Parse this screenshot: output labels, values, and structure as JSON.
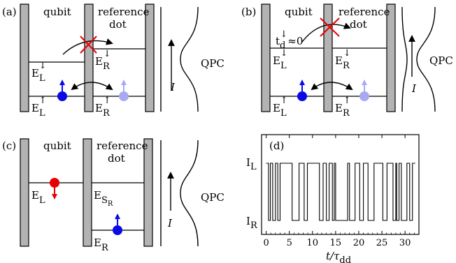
{
  "colors": {
    "electron": "#0a0ae6",
    "electron_faded": "#a9a9f0",
    "electron_red": "#e60000",
    "cross": "#e60000",
    "barrier": "#b3b3b3"
  },
  "panel_a": {
    "tag": "(a)",
    "left_label": "qubit",
    "right_label_1": "reference",
    "right_label_2": "dot",
    "E_L_down": "E",
    "E_L_down_sub": "L",
    "E_L_down_sup": "↓",
    "E_R_down": "E",
    "E_R_down_sub": "R",
    "E_R_down_sup": "↓",
    "E_L_up": "E",
    "E_L_up_sub": "L",
    "E_L_up_sup": "↑",
    "E_R_up": "E",
    "E_R_up_sub": "R",
    "E_R_up_sup": "↑",
    "current": "I",
    "qpc": "QPC"
  },
  "panel_b": {
    "tag": "(b)",
    "left_label": "qubit",
    "right_label_1": "reference",
    "right_label_2": "dot",
    "t_label": "t",
    "t_sub": "d",
    "t_sup": "↓",
    "t_val": "≈0",
    "E_L_down": "E",
    "E_L_down_sub": "L",
    "E_L_down_sup": "↓",
    "E_R_down": "E",
    "E_R_down_sub": "R",
    "E_R_down_sup": "↓",
    "E_L_up": "E",
    "E_L_up_sub": "L",
    "E_L_up_sup": "↑",
    "E_R_up": "E",
    "E_R_up_sub": "R",
    "E_R_up_sup": "↑",
    "current": "I",
    "qpc": "QPC"
  },
  "panel_c": {
    "tag": "(c)",
    "left_label": "qubit",
    "right_label_1": "reference",
    "right_label_2": "dot",
    "E_L": "E",
    "E_L_sub": "L",
    "E_S": "E",
    "E_S_sub": "S",
    "E_S_subsub": "R",
    "E_R": "E",
    "E_R_sub": "R",
    "current": "I",
    "qpc": "QPC"
  },
  "chart_data": {
    "type": "line",
    "tag": "(d)",
    "xlabel": "t/τ",
    "xlabel_main": "t/τ",
    "xlabel_sub": "dd",
    "ylabel_high": "I",
    "ylabel_high_sub": "L",
    "ylabel_low": "I",
    "ylabel_low_sub": "R",
    "xlim": [
      -1,
      33
    ],
    "xticks": [
      "0",
      "5",
      "10",
      "15",
      "20",
      "25",
      "30"
    ],
    "xtick_values": [
      0,
      5,
      10,
      15,
      20,
      25,
      30
    ],
    "levels": {
      "high": 1,
      "low": 0
    },
    "switch_times": [
      0.5,
      0.9,
      1.4,
      2.0,
      2.5,
      3.0,
      5.6,
      7.1,
      8.2,
      8.9,
      11.5,
      12.3,
      13.0,
      13.6,
      14.3,
      14.7,
      15.0,
      17.6,
      18.0,
      19.2,
      20.2,
      21.0,
      22.0,
      23.3,
      25.2,
      26.1,
      27.4,
      28.0,
      28.2,
      28.7,
      29.2,
      30.4,
      31.0,
      31.6
    ],
    "start_level": 1,
    "t_end": 32.2
  }
}
